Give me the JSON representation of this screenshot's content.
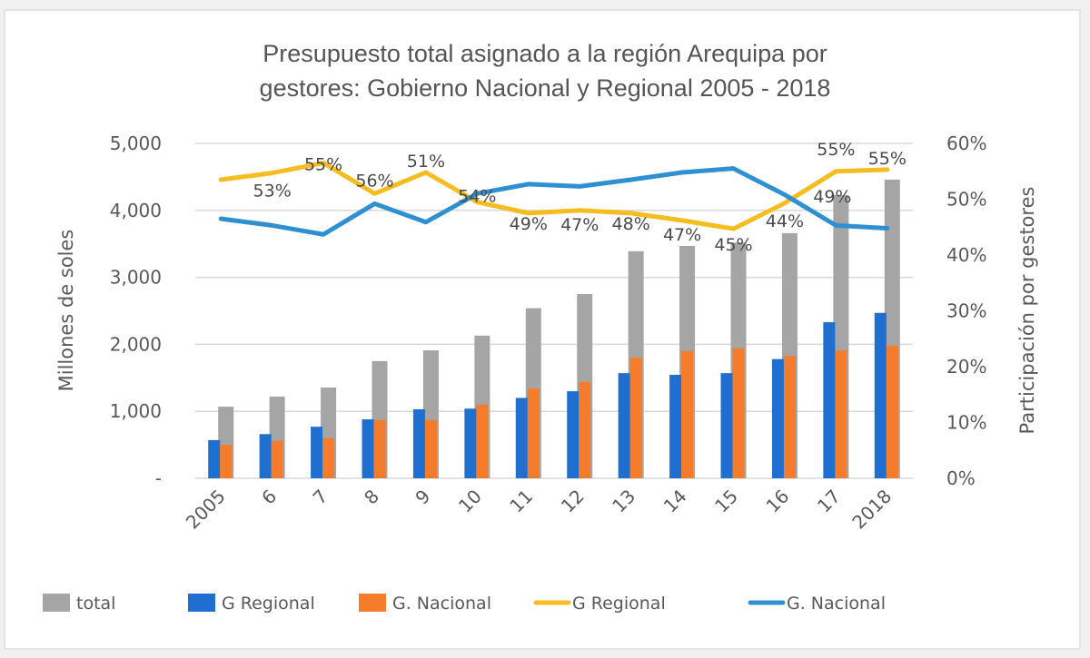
{
  "chart_data": {
    "type": "bar",
    "title": "Presupuesto total asignado a la región Arequipa por gestores: Gobierno Nacional y Regional 2005 - 2018",
    "title_lines": [
      "Presupuesto total asignado a la región Arequipa por",
      "gestores: Gobierno Nacional y Regional 2005 - 2018"
    ],
    "categories": [
      "2005",
      "6",
      "7",
      "8",
      "9",
      "10",
      "11",
      "12",
      "13",
      "14",
      "15",
      "16",
      "17",
      "2018"
    ],
    "ylabel": "Millones de soles",
    "y2label": "Participación por gestores",
    "ylim": [
      0,
      5000
    ],
    "y2lim": [
      0,
      0.6
    ],
    "yticks": [
      "-",
      "1,000",
      "2,000",
      "3,000",
      "4,000",
      "5,000"
    ],
    "y2ticks": [
      "0%",
      "10%",
      "20%",
      "30%",
      "40%",
      "50%",
      "60%"
    ],
    "grid": true,
    "legend_position": "bottom",
    "bar_series": [
      {
        "name": "total",
        "color": "#a5a5a5",
        "values": [
          1070,
          1220,
          1355,
          1750,
          1910,
          2130,
          2540,
          2750,
          3390,
          3470,
          3520,
          3660,
          4230,
          4460
        ]
      },
      {
        "name": "G Regional",
        "color": "#1f6fd1",
        "values": [
          570,
          660,
          770,
          880,
          1030,
          1040,
          1200,
          1300,
          1570,
          1545,
          1570,
          1780,
          2330,
          2470
        ]
      },
      {
        "name": "G. Nacional",
        "color": "#f47c2a",
        "values": [
          500,
          560,
          600,
          870,
          870,
          1100,
          1340,
          1440,
          1800,
          1900,
          1940,
          1830,
          1910,
          1980
        ]
      }
    ],
    "line_series": [
      {
        "name": "G Regional",
        "color": "#f5bd1f",
        "axis": "secondary",
        "values": [
          0.535,
          0.547,
          0.565,
          0.51,
          0.548,
          0.495,
          0.475,
          0.48,
          0.475,
          0.462,
          0.447,
          0.493,
          0.55,
          0.553
        ]
      },
      {
        "name": "G. Nacional",
        "color": "#2e90d1",
        "axis": "secondary",
        "values": [
          0.465,
          0.453,
          0.437,
          0.492,
          0.459,
          0.51,
          0.527,
          0.523,
          0.535,
          0.548,
          0.555,
          0.508,
          0.453,
          0.448
        ]
      }
    ],
    "data_labels": [
      {
        "category": "6",
        "text": "53%"
      },
      {
        "category": "7",
        "text": "55%"
      },
      {
        "category": "8",
        "text": "56%"
      },
      {
        "category": "9",
        "text": "51%"
      },
      {
        "category": "10",
        "text": "54%"
      },
      {
        "category": "11",
        "text": "49%"
      },
      {
        "category": "12",
        "text": "47%"
      },
      {
        "category": "13",
        "text": "48%"
      },
      {
        "category": "14",
        "text": "47%"
      },
      {
        "category": "15",
        "text": "45%"
      },
      {
        "category": "16",
        "text": "44%"
      },
      {
        "category": "17",
        "text": "55%"
      },
      {
        "category": "17",
        "text": "49%"
      },
      {
        "category": "2018",
        "text": "55%"
      }
    ],
    "legend": [
      {
        "label": "total",
        "kind": "bar",
        "color": "#a5a5a5"
      },
      {
        "label": "G Regional",
        "kind": "bar",
        "color": "#1f6fd1"
      },
      {
        "label": "G. Nacional",
        "kind": "bar",
        "color": "#f47c2a"
      },
      {
        "label": "G Regional",
        "kind": "line",
        "color": "#f5bd1f"
      },
      {
        "label": "G. Nacional",
        "kind": "line",
        "color": "#2e90d1"
      }
    ]
  }
}
